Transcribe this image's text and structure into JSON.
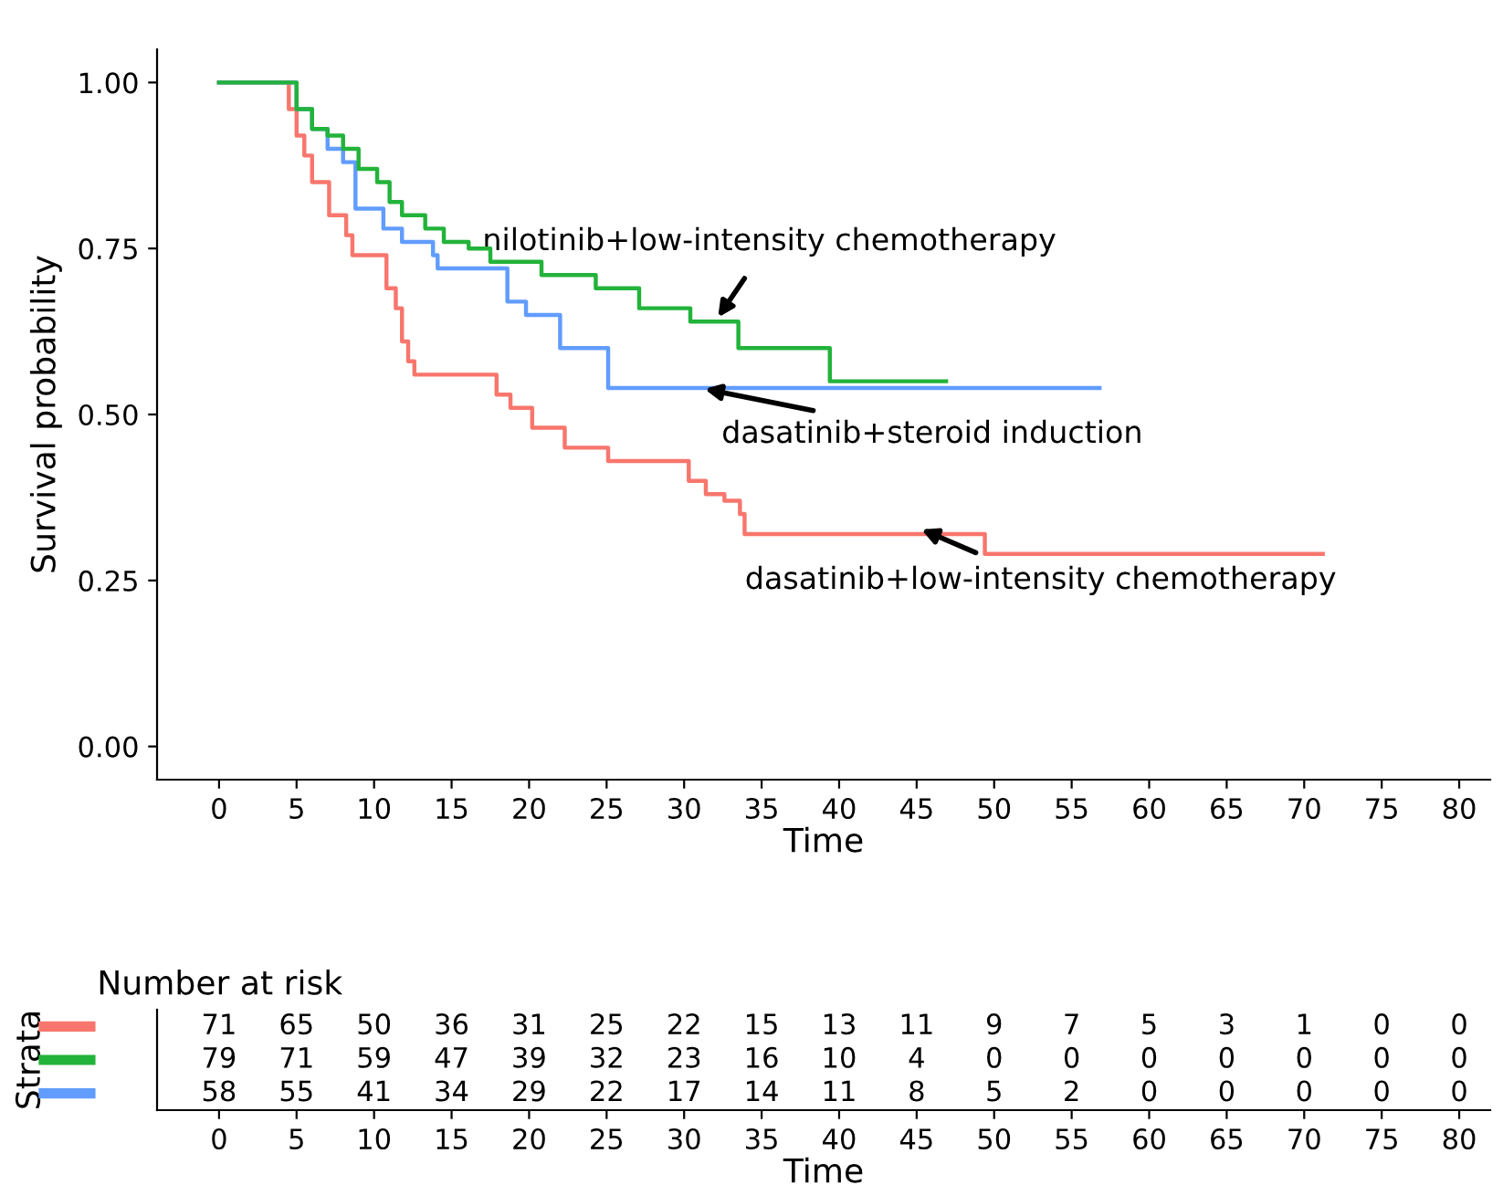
{
  "chart_data": [
    {
      "type": "step",
      "xlabel": "Time",
      "ylabel": "Survival probability",
      "xlim": [
        -4,
        82
      ],
      "ylim": [
        -0.05,
        1.05
      ],
      "xticks": [
        0,
        5,
        10,
        15,
        20,
        25,
        30,
        35,
        40,
        45,
        50,
        55,
        60,
        65,
        70,
        75,
        80
      ],
      "yticks": [
        {
          "value": 0,
          "label": "0.00"
        },
        {
          "value": 0.25,
          "label": "0.25"
        },
        {
          "value": 0.5,
          "label": "0.50"
        },
        {
          "value": 0.75,
          "label": "0.75"
        },
        {
          "value": 1,
          "label": "1.00"
        }
      ],
      "grid": false,
      "legend": false,
      "line_style": "solid",
      "series": [
        {
          "color": "#f8766d",
          "x": [
            0,
            4.5,
            5,
            5.5,
            6,
            7.1,
            8.2,
            8.6,
            10.8,
            11.4,
            11.8,
            12.2,
            12.6,
            17.9,
            18.8,
            20.2,
            22.3,
            25.1,
            30.3,
            31.4,
            32.6,
            33.6,
            33.9,
            49.4,
            71.2
          ],
          "values": [
            1,
            0.96,
            0.92,
            0.89,
            0.85,
            0.8,
            0.77,
            0.74,
            0.69,
            0.66,
            0.61,
            0.58,
            0.56,
            0.53,
            0.51,
            0.48,
            0.45,
            0.43,
            0.4,
            0.38,
            0.37,
            0.35,
            0.32,
            0.29,
            0.29
          ]
        },
        {
          "color": "#22b33a",
          "x": [
            0,
            5,
            6,
            7,
            8,
            9,
            10.2,
            11,
            11.8,
            13.3,
            14.5,
            16.1,
            17.5,
            20.8,
            24.3,
            27.1,
            30.4,
            33.5,
            39.4,
            46.9
          ],
          "values": [
            1,
            0.96,
            0.93,
            0.92,
            0.9,
            0.87,
            0.85,
            0.82,
            0.8,
            0.78,
            0.76,
            0.75,
            0.73,
            0.71,
            0.69,
            0.66,
            0.64,
            0.6,
            0.55,
            0.55
          ]
        },
        {
          "color": "#619cff",
          "x": [
            0,
            5,
            6,
            7,
            8,
            8.8,
            10.6,
            11.8,
            13.8,
            14.1,
            18.6,
            19.8,
            22,
            25.1,
            56.8
          ],
          "values": [
            1,
            0.96,
            0.93,
            0.9,
            0.88,
            0.81,
            0.78,
            0.76,
            0.74,
            0.72,
            0.67,
            0.65,
            0.6,
            0.54,
            0.54
          ]
        }
      ],
      "annotations": [
        {
          "text": "nilotinib+low-intensity chemotherapy",
          "x": 32,
          "y": 0.64
        },
        {
          "text": "dasatinib+steroid induction",
          "x": 31,
          "y": 0.54
        },
        {
          "text": "dasatinib+low-intensity chemotherapy",
          "x": 45,
          "y": 0.33
        }
      ]
    },
    {
      "type": "heatmap",
      "title": "Number at risk",
      "xlabel": "Time",
      "ylabel": "Strata",
      "data_labels": true,
      "categories": [
        "0",
        "5",
        "10",
        "15",
        "20",
        "25",
        "30",
        "35",
        "40",
        "45",
        "50",
        "55",
        "60",
        "65",
        "70",
        "75",
        "80"
      ],
      "y_categories": [
        null,
        null,
        null
      ],
      "colors": [
        "#f8766d",
        "#22b33a",
        "#619cff"
      ],
      "cells": [
        [
          71,
          65,
          50,
          36,
          31,
          25,
          22,
          15,
          13,
          11,
          9,
          7,
          5,
          3,
          1,
          0,
          0
        ],
        [
          79,
          71,
          59,
          47,
          39,
          32,
          23,
          16,
          10,
          4,
          0,
          0,
          0,
          0,
          0,
          0,
          0
        ],
        [
          58,
          55,
          41,
          34,
          29,
          22,
          17,
          14,
          11,
          8,
          5,
          2,
          0,
          0,
          0,
          0,
          0
        ]
      ]
    }
  ]
}
